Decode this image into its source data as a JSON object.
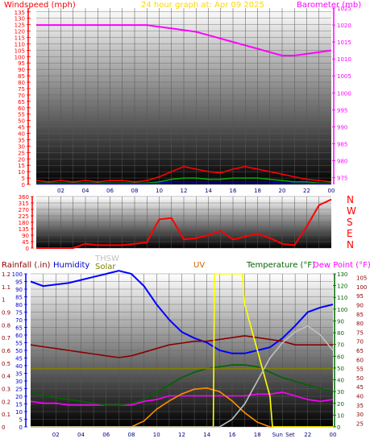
{
  "chart_data": [
    {
      "type": "line",
      "title": "24 hour graph at: Apr 09 2025",
      "left_axis_label": "Windspeed (mph)",
      "right_axis_label": "Barometer (mb)",
      "left_ticks": [
        "0",
        "5",
        "10",
        "15",
        "20",
        "25",
        "30",
        "35",
        "40",
        "45",
        "50",
        "55",
        "60",
        "65",
        "70",
        "75",
        "80",
        "85",
        "90",
        "95",
        "100",
        "105",
        "110",
        "115",
        "120",
        "125",
        "130",
        "135"
      ],
      "right_ticks": [
        "975",
        "980",
        "985",
        "990",
        "995",
        "1000",
        "1005",
        "1010",
        "1015",
        "1020",
        "1025"
      ],
      "x_ticks": [
        "02",
        "04",
        "06",
        "08",
        "10",
        "12",
        "14",
        "16",
        "18",
        "20",
        "22",
        "00"
      ],
      "ylim_left": [
        0,
        138
      ],
      "ylim_right": [
        973,
        1025
      ],
      "grid": true,
      "series": [
        {
          "axis": "right",
          "color": "#ff00ff",
          "x": [
            0,
            1,
            2,
            3,
            4,
            5,
            6,
            7,
            8,
            9,
            10,
            11,
            12,
            13,
            14,
            15,
            16,
            17,
            18,
            19,
            20,
            21,
            22,
            23,
            24
          ],
          "values": [
            1020,
            1020,
            1020,
            1020,
            1020,
            1020,
            1020,
            1020,
            1020,
            1020,
            1019.5,
            1019,
            1018.5,
            1018,
            1017,
            1016,
            1015,
            1014,
            1013,
            1012,
            1011,
            1011,
            1011.5,
            1012,
            1012.5
          ]
        },
        {
          "axis": "left",
          "color": "#ff0000",
          "x": [
            0,
            1,
            2,
            3,
            4,
            5,
            6,
            7,
            8,
            9,
            10,
            11,
            12,
            13,
            14,
            15,
            16,
            17,
            18,
            19,
            20,
            21,
            22,
            23,
            24
          ],
          "values": [
            3,
            2,
            3,
            2,
            3,
            2,
            3,
            3,
            2,
            3,
            6,
            10,
            14,
            12,
            10,
            9,
            12,
            14,
            12,
            10,
            8,
            6,
            4,
            3,
            2
          ]
        },
        {
          "axis": "left",
          "color": "#00aa00",
          "x": [
            0,
            1,
            2,
            3,
            4,
            5,
            6,
            7,
            8,
            9,
            10,
            11,
            12,
            13,
            14,
            15,
            16,
            17,
            18,
            19,
            20,
            21,
            22,
            23,
            24
          ],
          "values": [
            1,
            1,
            1,
            1,
            1,
            1,
            1,
            1,
            1,
            1,
            2,
            4,
            5,
            5,
            4,
            4,
            5,
            5,
            5,
            4,
            3,
            2,
            2,
            1,
            1
          ]
        },
        {
          "axis": "left",
          "color": "#0000cc",
          "x": [
            0,
            1,
            2,
            3,
            4,
            5,
            6,
            7,
            8,
            9,
            10,
            11,
            12,
            13,
            14,
            15,
            16,
            17,
            18,
            19,
            20,
            21,
            22,
            23,
            24
          ],
          "values": [
            0.5,
            0.5,
            0.5,
            0.5,
            0.5,
            0.5,
            0.5,
            0.5,
            0.5,
            0.5,
            1,
            2,
            2,
            2,
            2,
            2,
            2,
            2,
            2,
            2,
            1,
            1,
            1,
            0.5,
            0.5
          ]
        }
      ]
    },
    {
      "type": "line",
      "right_axis_label": [
        "N",
        "W",
        "S",
        "E",
        "N"
      ],
      "left_ticks": [
        "0",
        "45",
        "90",
        "135",
        "180",
        "225",
        "270",
        "315",
        "360"
      ],
      "ylim": [
        0,
        360
      ],
      "grid": true,
      "series": [
        {
          "color": "#ff0000",
          "x": [
            0,
            1,
            2,
            3,
            4,
            5,
            6,
            7,
            8,
            9,
            10,
            11,
            12,
            13,
            14,
            15,
            16,
            17,
            18,
            19,
            20,
            21,
            22,
            23,
            24
          ],
          "values": [
            0,
            0,
            0,
            0,
            30,
            20,
            20,
            20,
            30,
            40,
            200,
            210,
            60,
            70,
            90,
            120,
            60,
            80,
            100,
            70,
            30,
            20,
            150,
            300,
            340
          ]
        }
      ]
    },
    {
      "type": "line",
      "labels": {
        "rainfall": "Rainfall (.in)",
        "humidity": "Humidity",
        "thsw": "THSW",
        "solar": "Solar",
        "uv": "UV",
        "temperature": "Temperature (°F)",
        "dew_point": "Dew Point (°F)"
      },
      "left_ticks_rain": [
        "0",
        "0.1",
        "0.2",
        "0.3",
        "0.4",
        "0.5",
        "0.6",
        "0.7",
        "0.8",
        "0.9",
        "1",
        "1.1",
        "1.2"
      ],
      "left_ticks_humidity": [
        "0",
        "5",
        "10",
        "15",
        "20",
        "25",
        "30",
        "35",
        "40",
        "45",
        "50",
        "55",
        "60",
        "65",
        "70",
        "75",
        "80",
        "85",
        "90",
        "95",
        "100"
      ],
      "right_ticks_temp": [
        "25",
        "30",
        "35",
        "40",
        "45",
        "50",
        "55",
        "60",
        "65",
        "70",
        "75",
        "80",
        "85",
        "90",
        "95",
        "100",
        "105"
      ],
      "right_ticks_uv": [
        "0",
        "10",
        "20",
        "30",
        "40",
        "50",
        "60",
        "70",
        "80",
        "90",
        "100",
        "110",
        "120",
        "130"
      ],
      "x_ticks": [
        "02",
        "04",
        "06",
        "08",
        "10",
        "12",
        "14",
        "16",
        "18",
        "Sun",
        "Set",
        "22",
        "00"
      ],
      "ylim_humidity": [
        0,
        100
      ],
      "ylim_temp": [
        23,
        107
      ],
      "grid": true,
      "series": [
        {
          "name": "Humidity",
          "color": "#0000ff",
          "x": [
            0,
            1,
            2,
            3,
            4,
            5,
            6,
            7,
            8,
            9,
            10,
            11,
            12,
            13,
            14,
            15,
            16,
            17,
            18,
            19,
            20,
            21,
            22,
            23,
            24
          ],
          "values": [
            95,
            92,
            93,
            94,
            96,
            98,
            100,
            102,
            100,
            92,
            80,
            70,
            62,
            58,
            55,
            50,
            48,
            48,
            50,
            52,
            58,
            66,
            75,
            78,
            80
          ]
        },
        {
          "name": "Temperature (°F)",
          "color": "#8b0000",
          "x": [
            0,
            1,
            2,
            3,
            4,
            5,
            6,
            7,
            8,
            9,
            10,
            11,
            12,
            13,
            14,
            15,
            16,
            17,
            18,
            19,
            20,
            21,
            22,
            23,
            24
          ],
          "values": [
            68,
            67,
            66,
            65,
            64,
            63,
            62,
            61,
            62,
            64,
            66,
            68,
            69,
            70,
            70,
            71,
            72,
            73,
            72,
            71,
            70,
            68,
            68,
            68,
            68
          ]
        },
        {
          "name": "Dew Point (°F)",
          "color": "#ff00ff",
          "x": [
            0,
            1,
            2,
            3,
            4,
            5,
            6,
            7,
            8,
            9,
            10,
            11,
            12,
            13,
            14,
            15,
            16,
            17,
            18,
            19,
            20,
            21,
            22,
            23,
            24
          ],
          "values": [
            37,
            36,
            36,
            35,
            35,
            35,
            35,
            35,
            35,
            37,
            38,
            40,
            40,
            40,
            40,
            40,
            40,
            40,
            41,
            41,
            42,
            40,
            38,
            37,
            38
          ]
        },
        {
          "name": "THSW",
          "color": "#006400",
          "x": [
            0,
            1,
            2,
            3,
            4,
            5,
            6,
            7,
            8,
            9,
            10,
            11,
            12,
            13,
            14,
            15,
            16,
            17,
            18,
            19,
            20,
            21,
            22,
            23,
            24
          ],
          "values": [
            42,
            40,
            39,
            38,
            37,
            36,
            35,
            35,
            36,
            38,
            42,
            46,
            50,
            53,
            55,
            56,
            57,
            57,
            56,
            53,
            50,
            48,
            46,
            44,
            42
          ]
        },
        {
          "name": "Solar",
          "color": "#808000",
          "x": [
            0,
            24
          ],
          "values": [
            55,
            55
          ]
        },
        {
          "name": "UV",
          "color": "#ff8c00",
          "x": [
            0,
            7,
            8,
            9,
            10,
            11,
            12,
            13,
            14,
            15,
            16,
            17,
            18,
            19,
            20,
            21,
            22,
            23,
            24
          ],
          "values": [
            0,
            0,
            0,
            5,
            15,
            22,
            28,
            32,
            33,
            30,
            22,
            12,
            4,
            0,
            0,
            0,
            0,
            0,
            0
          ]
        },
        {
          "name": "UV index",
          "color": "#ffff00",
          "x": [
            0,
            14.5,
            14.6,
            16.8,
            17,
            18,
            19,
            19.2,
            24
          ],
          "values": [
            0,
            0,
            100,
            100,
            80,
            50,
            20,
            0,
            0
          ]
        },
        {
          "name": "Solar radiation",
          "color": "#c0c0c0",
          "x": [
            0,
            15,
            16,
            17,
            18,
            19,
            20,
            21,
            22,
            23,
            24
          ],
          "values": [
            0,
            0,
            5,
            15,
            30,
            45,
            55,
            62,
            66,
            60,
            50
          ]
        }
      ]
    }
  ]
}
